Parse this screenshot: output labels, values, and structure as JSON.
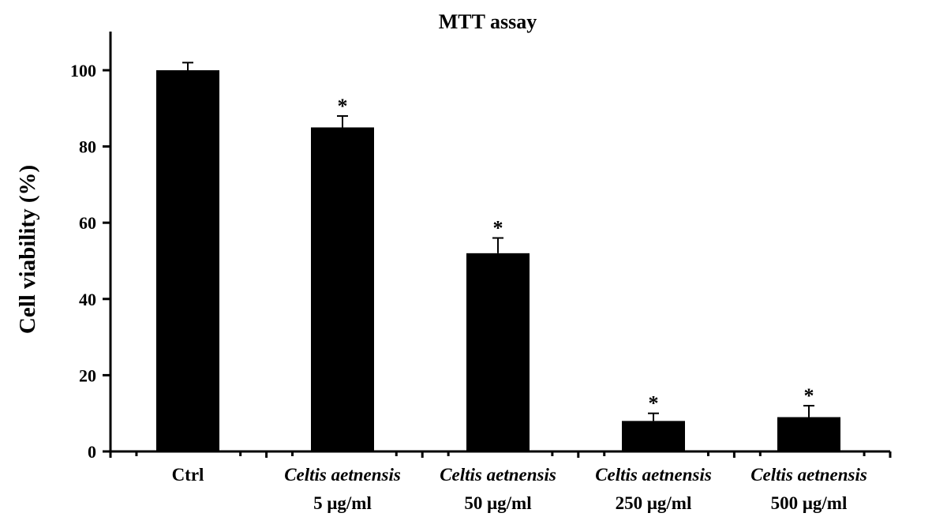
{
  "chart_data": {
    "type": "bar",
    "title": "MTT assay",
    "xlabel": "",
    "ylabel": "Cell viability (%)",
    "ylim": [
      0,
      110
    ],
    "yticks": [
      0,
      20,
      40,
      60,
      80,
      100
    ],
    "categories": [
      {
        "line1": "Ctrl",
        "line1_italic": false,
        "line2": ""
      },
      {
        "line1": "Celtis aetnensis",
        "line1_italic": true,
        "line2": "5 μg/ml"
      },
      {
        "line1": "Celtis aetnensis",
        "line1_italic": true,
        "line2": "50 μg/ml"
      },
      {
        "line1": "Celtis aetnensis",
        "line1_italic": true,
        "line2": "250 μg/ml"
      },
      {
        "line1": "Celtis aetnensis",
        "line1_italic": true,
        "line2": "500 μg/ml"
      }
    ],
    "values": [
      100,
      85,
      52,
      8,
      9
    ],
    "errors": [
      2,
      3,
      4,
      2,
      3
    ],
    "significance": [
      "",
      "*",
      "*",
      "*",
      "*"
    ],
    "grid": false,
    "legend": "none",
    "bar_color": "#000000"
  }
}
